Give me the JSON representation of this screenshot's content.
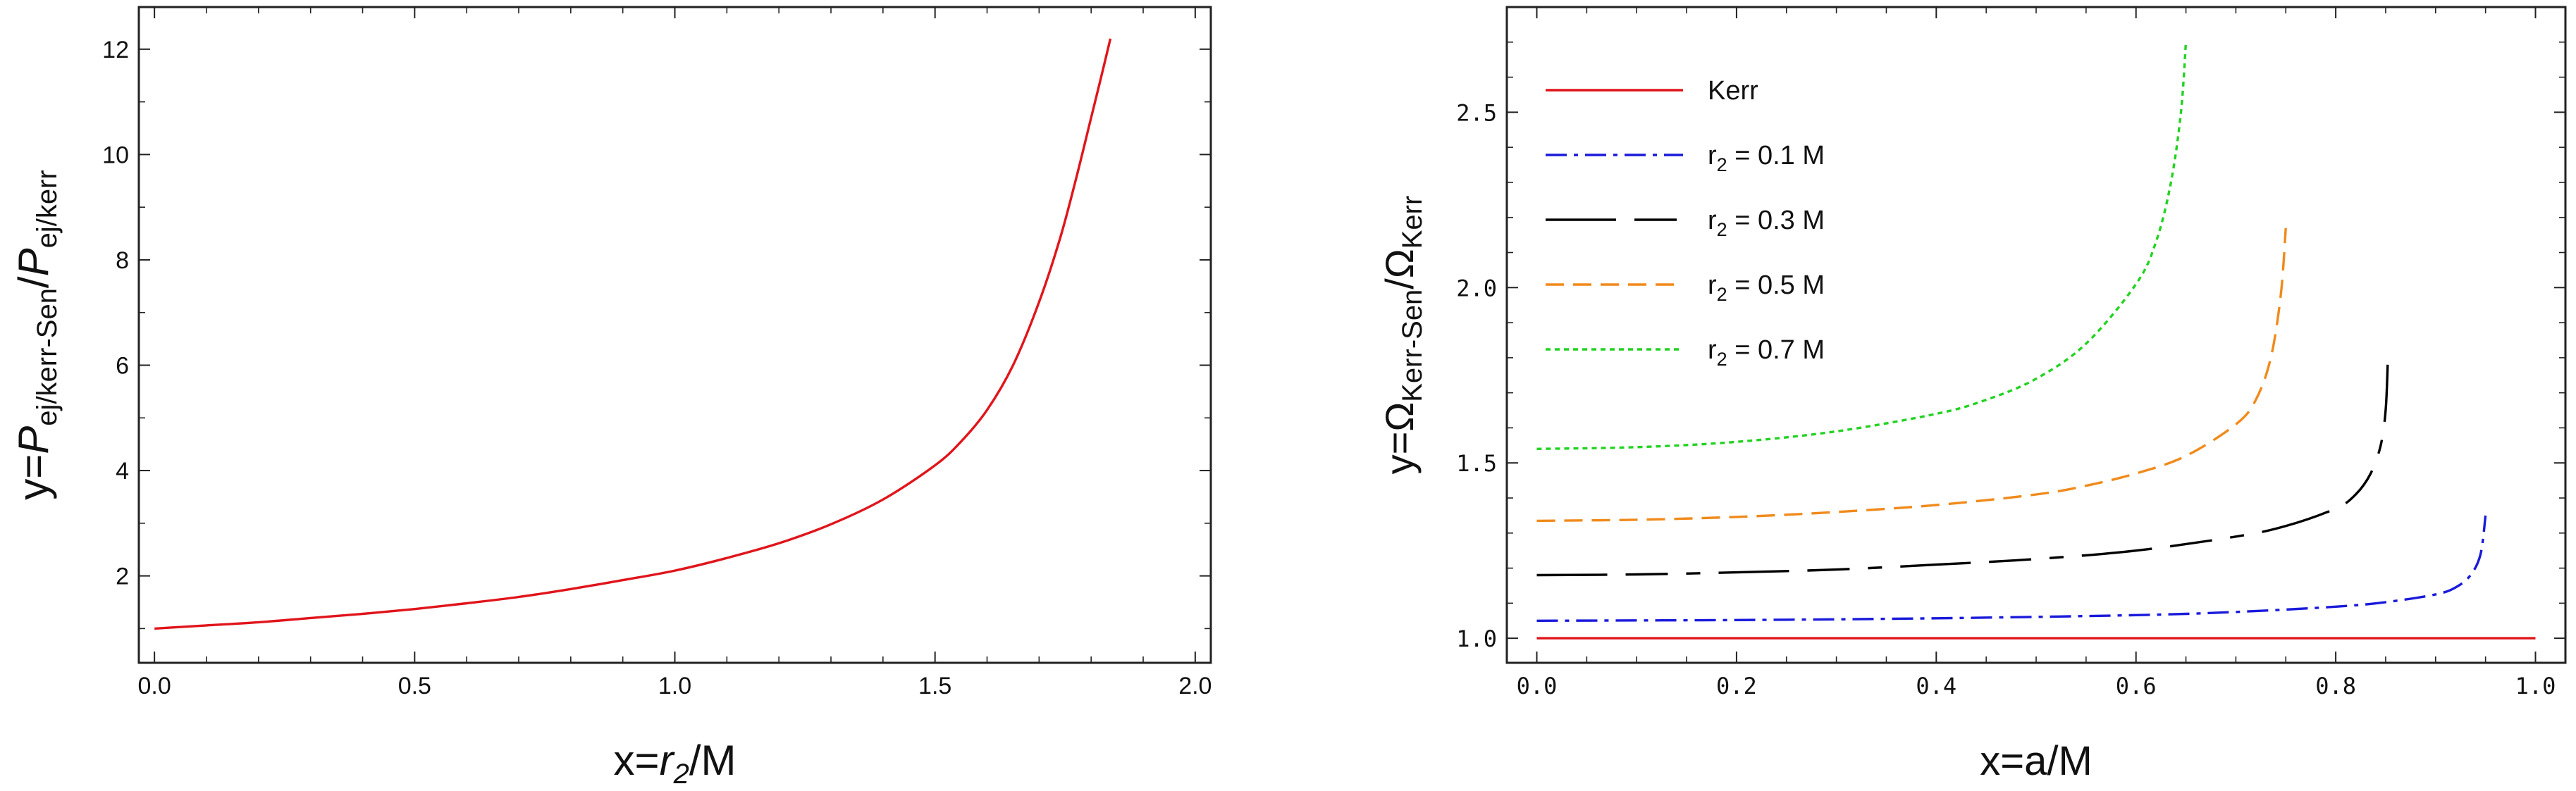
{
  "chart_data": [
    {
      "type": "line",
      "name": "left-panel",
      "xlim": [
        -0.03,
        2.03
      ],
      "ylim": [
        0.35,
        12.8
      ],
      "xticks": [
        0.0,
        0.5,
        1.0,
        1.5,
        2.0
      ],
      "xtick_labels": [
        "0.0",
        "0.5",
        "1.0",
        "1.5",
        "2.0"
      ],
      "yticks": [
        2,
        4,
        6,
        8,
        10,
        12
      ],
      "ytick_labels": [
        "2",
        "4",
        "6",
        "8",
        "10",
        "12"
      ],
      "xminor": [
        0.1,
        0.2,
        0.3,
        0.4,
        0.6,
        0.7,
        0.8,
        0.9,
        1.1,
        1.2,
        1.3,
        1.4,
        1.6,
        1.7,
        1.8,
        1.9
      ],
      "yminor": [
        1,
        3,
        5,
        7,
        9,
        11
      ],
      "xlabel": {
        "pre": "x=",
        "var": "r",
        "sub": "2",
        "post": "/M"
      },
      "ylabel": {
        "pre": "y=",
        "p1": "P",
        "s1": "ej/kerr-Sen",
        "mid": "/",
        "p2": "P",
        "s2": "ej/kerr"
      },
      "series": [
        {
          "name": "ratio",
          "color": "#e0151b",
          "x": [
            0.0,
            0.1,
            0.2,
            0.3,
            0.4,
            0.5,
            0.6,
            0.7,
            0.8,
            0.9,
            1.0,
            1.1,
            1.2,
            1.3,
            1.4,
            1.5,
            1.55,
            1.6,
            1.65,
            1.7,
            1.74,
            1.77,
            1.8,
            1.82,
            1.837
          ],
          "y": [
            1.0,
            1.06,
            1.12,
            1.2,
            1.28,
            1.37,
            1.48,
            1.6,
            1.75,
            1.92,
            2.1,
            2.34,
            2.62,
            2.98,
            3.45,
            4.1,
            4.55,
            5.15,
            6.0,
            7.2,
            8.4,
            9.5,
            10.7,
            11.5,
            12.2
          ]
        }
      ]
    },
    {
      "type": "line",
      "name": "right-panel",
      "xlim": [
        -0.03,
        1.03
      ],
      "ylim": [
        0.93,
        2.8
      ],
      "xticks": [
        0.0,
        0.2,
        0.4,
        0.6,
        0.8,
        1.0
      ],
      "xtick_labels": [
        "0.0",
        "0.2",
        "0.4",
        "0.6",
        "0.8",
        "1.0"
      ],
      "yticks": [
        1.0,
        1.5,
        2.0,
        2.5
      ],
      "ytick_labels": [
        "1.0",
        "1.5",
        "2.0",
        "2.5"
      ],
      "xminor": [
        0.05,
        0.1,
        0.15,
        0.25,
        0.3,
        0.35,
        0.45,
        0.5,
        0.55,
        0.65,
        0.7,
        0.75,
        0.85,
        0.9,
        0.95
      ],
      "yminor": [
        1.1,
        1.2,
        1.3,
        1.4,
        1.6,
        1.7,
        1.8,
        1.9,
        2.1,
        2.2,
        2.3,
        2.4,
        2.6,
        2.7
      ],
      "xlabel": {
        "pre": "x=a/M"
      },
      "ylabel": {
        "pre": "y=Ω",
        "s1": "Kerr-Sen",
        "mid": "/Ω",
        "s2": "Kerr"
      },
      "legend_position": "top-left",
      "series": [
        {
          "name": "Kerr",
          "label_main": "Kerr",
          "label_sub": "",
          "label_post": "",
          "color": "#e0151b",
          "dash": "",
          "x": [
            0.0,
            1.0
          ],
          "y": [
            1.0,
            1.0
          ]
        },
        {
          "name": "r2 = 0.1 M",
          "label_main": "r",
          "label_sub": "2",
          "label_post": " = 0.1 M",
          "color": "#1a1adb",
          "dash": "30 10 6 10",
          "x": [
            0.0,
            0.2,
            0.4,
            0.6,
            0.7,
            0.8,
            0.85,
            0.9,
            0.92,
            0.935,
            0.945,
            0.95
          ],
          "y": [
            1.05,
            1.052,
            1.057,
            1.066,
            1.075,
            1.09,
            1.103,
            1.125,
            1.145,
            1.18,
            1.24,
            1.35
          ]
        },
        {
          "name": "r2 = 0.3 M",
          "label_main": "r",
          "label_sub": "2",
          "label_post": " = 0.3 M",
          "color": "#000000",
          "dash": "100 26 60 26 20 26",
          "x": [
            0.0,
            0.1,
            0.2,
            0.3,
            0.4,
            0.5,
            0.6,
            0.7,
            0.75,
            0.8,
            0.82,
            0.835,
            0.845,
            0.85,
            0.852
          ],
          "y": [
            1.18,
            1.182,
            1.188,
            1.196,
            1.21,
            1.226,
            1.25,
            1.29,
            1.32,
            1.37,
            1.41,
            1.47,
            1.55,
            1.65,
            1.78
          ]
        },
        {
          "name": "r2 = 0.5 M",
          "label_main": "r",
          "label_sub": "2",
          "label_post": " = 0.5 M",
          "color": "#f08a1b",
          "dash": "26 13",
          "x": [
            0.0,
            0.1,
            0.2,
            0.3,
            0.4,
            0.5,
            0.55,
            0.6,
            0.65,
            0.7,
            0.72,
            0.735,
            0.745,
            0.75
          ],
          "y": [
            1.335,
            1.338,
            1.346,
            1.36,
            1.38,
            1.41,
            1.435,
            1.47,
            1.52,
            1.61,
            1.68,
            1.8,
            1.98,
            2.17
          ]
        },
        {
          "name": "r2 = 0.7 M",
          "label_main": "r",
          "label_sub": "2",
          "label_post": " = 0.7 M",
          "color": "#22d322",
          "dash": "7 6",
          "x": [
            0.0,
            0.1,
            0.2,
            0.3,
            0.4,
            0.45,
            0.5,
            0.55,
            0.6,
            0.62,
            0.635,
            0.645,
            0.65
          ],
          "y": [
            1.54,
            1.545,
            1.56,
            1.59,
            1.64,
            1.68,
            1.74,
            1.84,
            2.01,
            2.13,
            2.3,
            2.5,
            2.7
          ]
        }
      ]
    }
  ]
}
